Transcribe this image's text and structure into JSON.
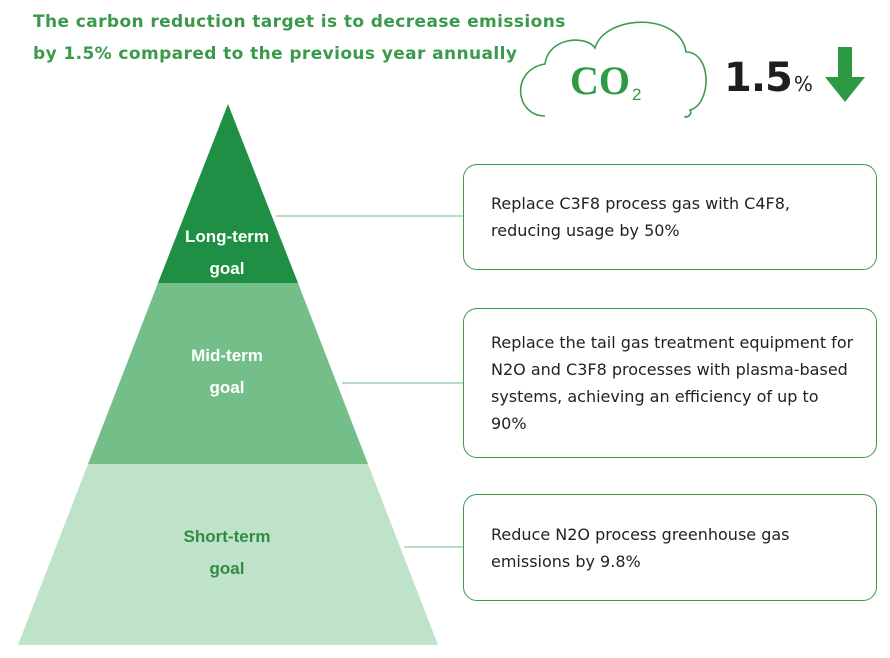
{
  "headline": {
    "line1": "The carbon reduction target is to decrease emissions",
    "line2": "by 1.5% compared to the previous year annually"
  },
  "badge": {
    "co2_main": "CO",
    "co2_sub": "2",
    "value": "1.5",
    "unit": "%",
    "trend_icon": "down-arrow-icon"
  },
  "tiers": [
    {
      "label_line1": "Long-term",
      "label_line2": "goal",
      "description": "Replace C3F8 process gas with C4F8, reducing usage by 50%"
    },
    {
      "label_line1": "Mid-term",
      "label_line2": "goal",
      "description": "Replace the tail gas treatment equipment for N2O and C3F8 processes with plasma-based systems, achieving an efficiency of up to 90%"
    },
    {
      "label_line1": "Short-term",
      "label_line2": "goal",
      "description": "Reduce N2O process greenhouse gas emissions by 9.8%"
    }
  ],
  "colors": {
    "headline_text": "#3a9a4a",
    "co2_text": "#2f9a45",
    "cloud_outline": "#3d9a4e",
    "arrow": "#2b9a43",
    "tier_long_fill": "#1e8f44",
    "tier_mid_fill": "#74bf89",
    "tier_short_fill": "#bfe3c9",
    "tier_long_text": "#ffffff",
    "tier_mid_text": "#ffffff",
    "tier_short_text": "#2f8c45",
    "connector": "#77b885",
    "box_border": "#3d9a4e"
  }
}
